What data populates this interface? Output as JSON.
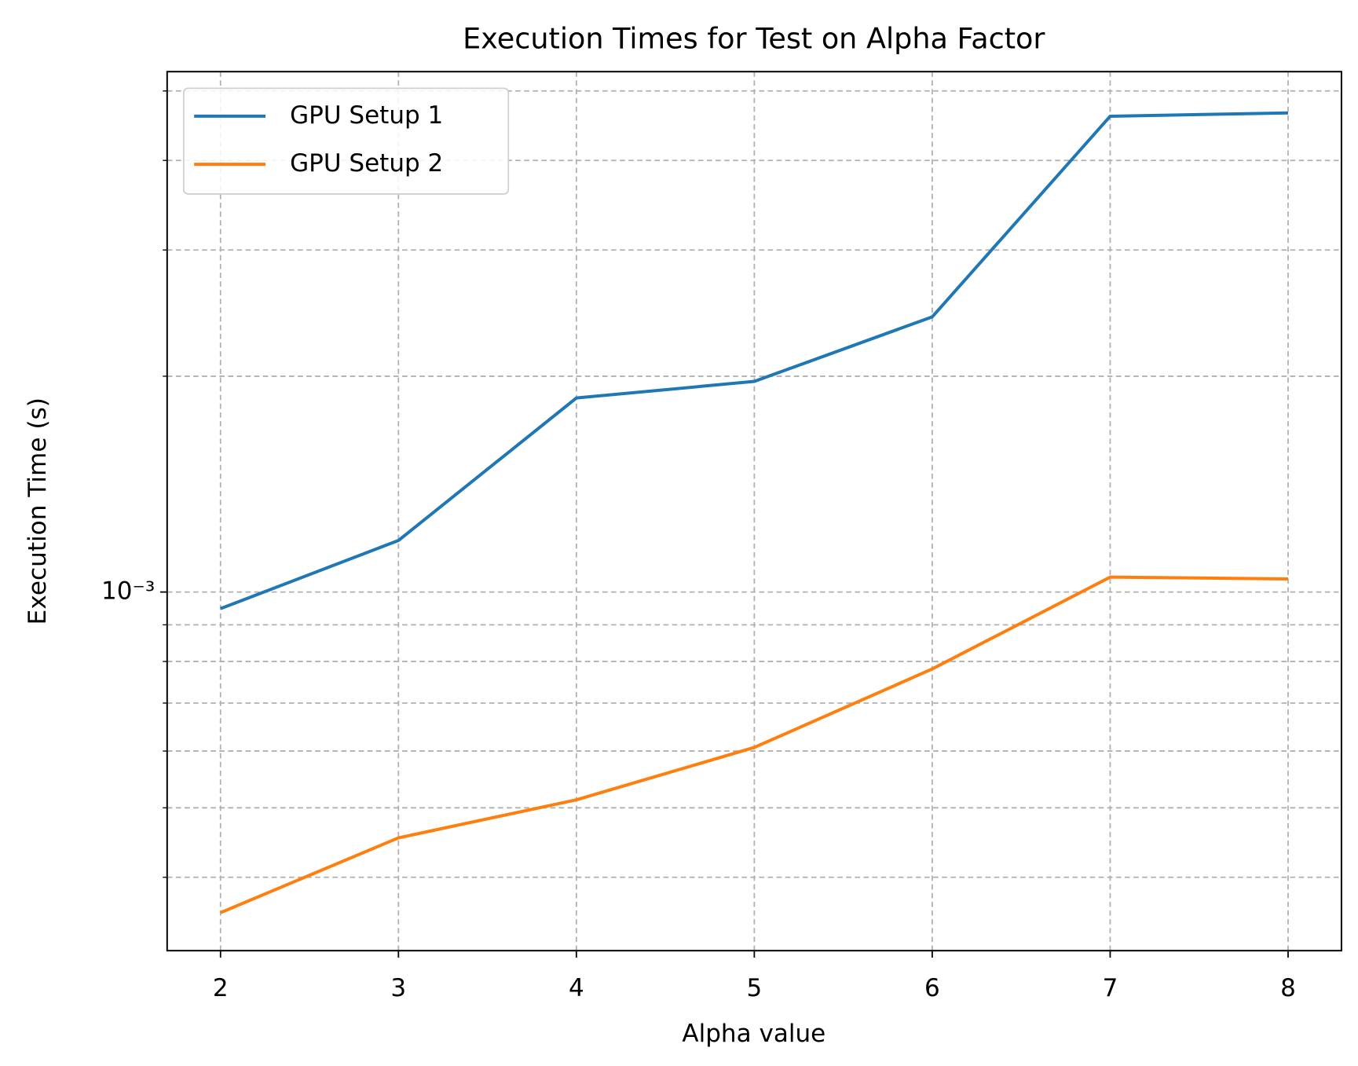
{
  "chart_data": {
    "type": "line",
    "title": "Execution Times for Test on Alpha Factor",
    "x_label": "Alpha value",
    "y_label": "Execution Time (s)",
    "x": [
      2,
      3,
      4,
      5,
      6,
      7,
      8
    ],
    "series": [
      {
        "name": "GPU Setup 1",
        "color": "#1f77b4",
        "values": [
          0.000948,
          0.00118,
          0.001865,
          0.001967,
          0.00242,
          0.00461,
          0.00466
        ]
      },
      {
        "name": "GPU Setup 2",
        "color": "#ff7f0e",
        "values": [
          0.000357,
          0.000454,
          0.000513,
          0.000607,
          0.000781,
          0.001049,
          0.001043
        ]
      }
    ],
    "xlim": [
      1.7,
      8.3
    ],
    "xticks": [
      2,
      3,
      4,
      5,
      6,
      7,
      8
    ],
    "ylim": [
      0.000316,
      0.00532
    ],
    "y_log_scale": true,
    "yticks": [
      {
        "value": 0.001,
        "label": "10⁻³"
      }
    ],
    "yticks_minor": [
      0.0004,
      0.0005,
      0.0006,
      0.0007,
      0.0008,
      0.0009,
      0.002,
      0.003,
      0.004,
      0.005
    ],
    "grid": true,
    "legend_position": "upper-left"
  }
}
